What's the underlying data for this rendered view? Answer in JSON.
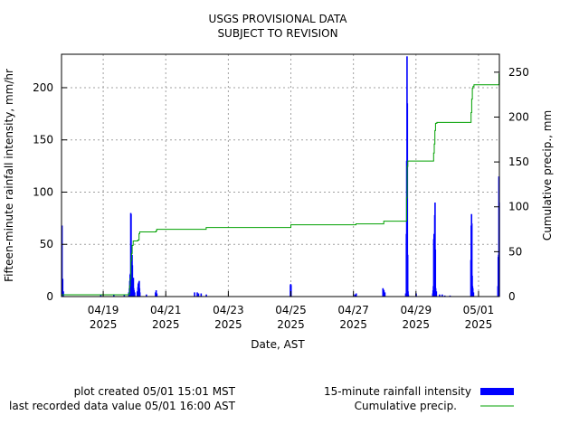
{
  "chart_data": {
    "type": "bar",
    "title": "USGS PROVISIONAL DATA",
    "subtitle": "SUBJECT TO REVISION",
    "xlabel": "Date, AST",
    "ylabel_left": "Fifteen-minute rainfall intensity, mm/hr",
    "ylabel_right": "Cumulative precip., mm",
    "x_range_days": [
      "04/17 16:00",
      "05/01 16:00"
    ],
    "y_left_lim": [
      0,
      232
    ],
    "y_right_lim": [
      0,
      270
    ],
    "grid": true,
    "y_left_ticks": [
      0,
      50,
      100,
      150,
      200
    ],
    "y_right_ticks": [
      0,
      50,
      100,
      150,
      200,
      250
    ],
    "x_ticks": [
      {
        "date": "04/19",
        "year": "2025"
      },
      {
        "date": "04/21",
        "year": "2025"
      },
      {
        "date": "04/23",
        "year": "2025"
      },
      {
        "date": "04/25",
        "year": "2025"
      },
      {
        "date": "04/27",
        "year": "2025"
      },
      {
        "date": "04/29",
        "year": "2025"
      },
      {
        "date": "05/01",
        "year": "2025"
      }
    ],
    "series": [
      {
        "name": "15-minute rainfall intensity",
        "type": "bar",
        "color": "#0000ff",
        "points": [
          [
            "04/17 16:15",
            68
          ],
          [
            "04/17 16:45",
            17
          ],
          [
            "04/17 17:15",
            5
          ],
          [
            "04/18 22:00",
            2
          ],
          [
            "04/19 08:00",
            2
          ],
          [
            "04/19 16:00",
            2
          ],
          [
            "04/19 19:30",
            4
          ],
          [
            "04/19 20:00",
            8
          ],
          [
            "04/19 20:15",
            15
          ],
          [
            "04/19 20:30",
            21
          ],
          [
            "04/19 20:45",
            22
          ],
          [
            "04/19 21:00",
            80
          ],
          [
            "04/19 21:15",
            79
          ],
          [
            "04/19 21:30",
            18
          ],
          [
            "04/19 21:45",
            35
          ],
          [
            "04/19 22:00",
            40
          ],
          [
            "04/19 22:15",
            30
          ],
          [
            "04/19 22:30",
            12
          ],
          [
            "04/19 22:45",
            12
          ],
          [
            "04/19 23:00",
            18
          ],
          [
            "04/19 23:15",
            8
          ],
          [
            "04/19 23:30",
            6
          ],
          [
            "04/20 00:00",
            4
          ],
          [
            "04/20 02:00",
            5
          ],
          [
            "04/20 02:30",
            9
          ],
          [
            "04/20 02:45",
            12
          ],
          [
            "04/20 03:00",
            13
          ],
          [
            "04/20 03:15",
            14
          ],
          [
            "04/20 03:30",
            15
          ],
          [
            "04/20 03:45",
            8
          ],
          [
            "04/20 04:00",
            4
          ],
          [
            "04/20 09:00",
            2
          ],
          [
            "04/20 16:00",
            4
          ],
          [
            "04/20 16:30",
            6
          ],
          [
            "04/20 17:00",
            3
          ],
          [
            "04/21 22:00",
            4
          ],
          [
            "04/22 00:00",
            4
          ],
          [
            "04/22 01:00",
            3
          ],
          [
            "04/22 03:00",
            3
          ],
          [
            "04/22 07:00",
            2
          ],
          [
            "04/24 23:30",
            11
          ],
          [
            "04/24 23:45",
            12
          ],
          [
            "04/25 00:00",
            11
          ],
          [
            "04/27 01:00",
            2
          ],
          [
            "04/27 02:00",
            3
          ],
          [
            "04/27 22:30",
            8
          ],
          [
            "04/27 22:45",
            7
          ],
          [
            "04/27 23:15",
            6
          ],
          [
            "04/28 00:00",
            4
          ],
          [
            "04/28 16:00",
            3
          ],
          [
            "04/28 16:30",
            60
          ],
          [
            "04/28 16:45",
            130
          ],
          [
            "04/28 17:00",
            230
          ],
          [
            "04/28 17:15",
            185
          ],
          [
            "04/28 17:30",
            40
          ],
          [
            "04/28 17:45",
            5
          ],
          [
            "04/28 18:00",
            2
          ],
          [
            "04/29 00:00",
            3
          ],
          [
            "04/29 12:45",
            3
          ],
          [
            "04/29 13:00",
            6
          ],
          [
            "04/29 13:15",
            10
          ],
          [
            "04/29 13:30",
            55
          ],
          [
            "04/29 13:45",
            60
          ],
          [
            "04/29 14:00",
            45
          ],
          [
            "04/29 14:15",
            78
          ],
          [
            "04/29 14:30",
            90
          ],
          [
            "04/29 14:45",
            45
          ],
          [
            "04/29 15:00",
            8
          ],
          [
            "04/29 15:30",
            5
          ],
          [
            "04/29 18:00",
            2
          ],
          [
            "04/29 20:00",
            2
          ],
          [
            "04/29 22:00",
            1
          ],
          [
            "04/30 02:00",
            1
          ],
          [
            "04/30 18:00",
            35
          ],
          [
            "04/30 18:15",
            68
          ],
          [
            "04/30 18:30",
            79
          ],
          [
            "04/30 18:45",
            70
          ],
          [
            "04/30 19:00",
            20
          ],
          [
            "04/30 19:15",
            10
          ],
          [
            "04/30 19:30",
            8
          ],
          [
            "04/30 20:00",
            4
          ],
          [
            "05/01 14:45",
            10
          ],
          [
            "05/01 15:00",
            38
          ],
          [
            "05/01 15:15",
            40
          ],
          [
            "05/01 15:30",
            115
          ],
          [
            "05/01 15:45",
            90
          ]
        ]
      },
      {
        "name": "Cumulative precip.",
        "type": "step",
        "color": "#00a000",
        "points": [
          [
            "04/17 16:00",
            0
          ],
          [
            "04/17 16:15",
            2
          ],
          [
            "04/19 19:00",
            2
          ],
          [
            "04/19 19:30",
            3
          ],
          [
            "04/19 20:15",
            12
          ],
          [
            "04/19 20:45",
            20
          ],
          [
            "04/19 21:15",
            40
          ],
          [
            "04/19 21:45",
            48
          ],
          [
            "04/19 22:15",
            57
          ],
          [
            "04/19 23:00",
            62
          ],
          [
            "04/20 02:30",
            63
          ],
          [
            "04/20 03:30",
            70
          ],
          [
            "04/20 04:00",
            72
          ],
          [
            "04/20 16:30",
            73
          ],
          [
            "04/20 17:00",
            75
          ],
          [
            "04/22 03:00",
            75
          ],
          [
            "04/22 07:00",
            77
          ],
          [
            "04/24 23:30",
            77
          ],
          [
            "04/25 00:00",
            80
          ],
          [
            "04/27 01:00",
            80
          ],
          [
            "04/27 02:00",
            81
          ],
          [
            "04/27 22:30",
            81
          ],
          [
            "04/27 23:15",
            84
          ],
          [
            "04/28 16:15",
            84
          ],
          [
            "04/28 16:45",
            110
          ],
          [
            "04/28 17:15",
            145
          ],
          [
            "04/28 17:45",
            151
          ],
          [
            "04/29 12:45",
            151
          ],
          [
            "04/29 13:30",
            160
          ],
          [
            "04/29 14:00",
            170
          ],
          [
            "04/29 14:30",
            185
          ],
          [
            "04/29 15:00",
            193
          ],
          [
            "04/29 16:00",
            194
          ],
          [
            "04/30 17:45",
            194
          ],
          [
            "04/30 18:15",
            205
          ],
          [
            "04/30 18:45",
            220
          ],
          [
            "04/30 19:15",
            232
          ],
          [
            "04/30 19:45",
            234
          ],
          [
            "04/30 20:30",
            236
          ],
          [
            "05/01 15:30",
            236
          ],
          [
            "05/01 15:45",
            248
          ],
          [
            "05/01 16:00",
            248
          ]
        ]
      }
    ],
    "legend": {
      "placement": "bottom-right",
      "items": [
        "15-minute rainfall intensity",
        "Cumulative precip."
      ]
    },
    "footer": {
      "created": "plot created 05/01 15:01 MST",
      "last_value": "last recorded data value 05/01 16:00 AST"
    }
  }
}
